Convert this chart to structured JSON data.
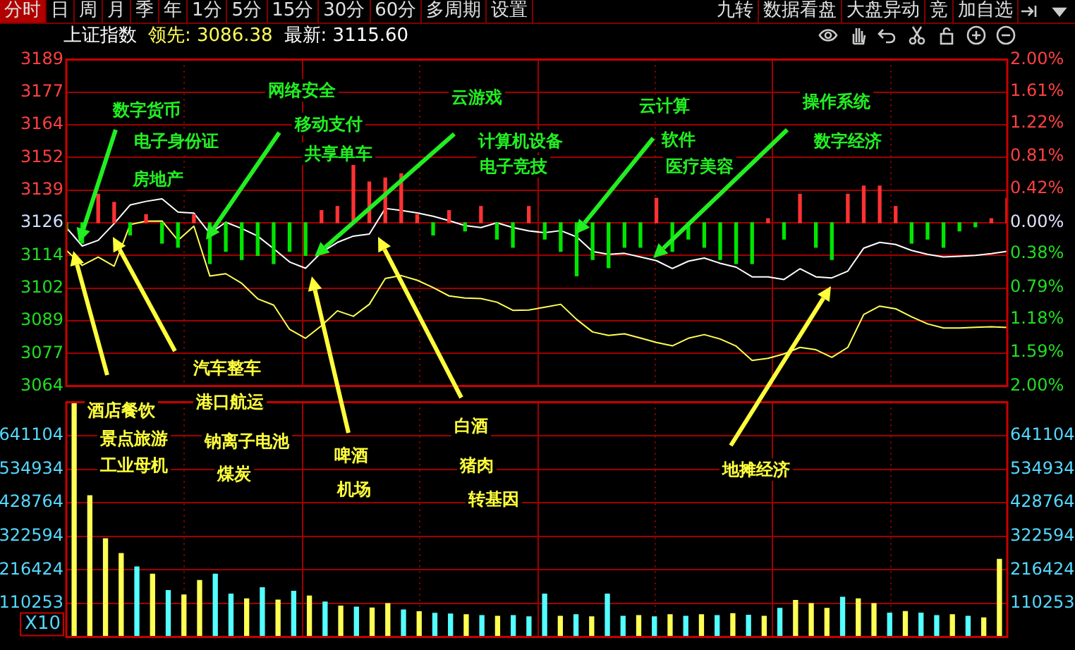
{
  "chart_data": [
    {
      "type": "other",
      "annotations": [
        "分时",
        "日",
        "周",
        "月",
        "季",
        "年",
        "1分",
        "5分",
        "15分",
        "30分",
        "60分",
        "多周期",
        "设置",
        "九转",
        "数据看盘",
        "大盘异动",
        "竞",
        "加自选"
      ]
    },
    {
      "type": "line",
      "title": "上证指数",
      "legend": "top left",
      "grid": true,
      "categories": [
        null,
        null,
        null,
        null,
        null,
        null,
        null,
        null,
        null,
        null,
        null,
        null,
        null,
        null,
        null,
        null,
        null,
        null,
        null,
        null,
        null,
        null,
        null,
        null,
        null,
        null,
        null,
        null,
        null,
        null,
        null,
        null,
        null,
        null,
        null,
        null,
        null,
        null,
        null,
        null,
        null,
        null,
        null,
        null,
        null,
        null,
        null,
        null,
        null,
        null,
        null,
        null,
        null,
        null,
        null,
        null,
        null,
        null,
        null,
        null
      ],
      "series": [
        {
          "name": "领先: 3086.38",
          "color": "#ffff54",
          "values": [
            3116.0,
            3110.2,
            3113.4,
            3109.9,
            3125.8,
            3127.1,
            3127.2,
            3119.8,
            3125.2,
            3106.1,
            3107.0,
            3103.3,
            3097.4,
            3095.0,
            3085.7,
            3082.3,
            3087.1,
            3092.8,
            3090.7,
            3095.3,
            3105.2,
            3106.3,
            3104.5,
            3101.7,
            3098.5,
            3097.7,
            3097.5,
            3096.1,
            3093.0,
            3093.1,
            3094.2,
            3095.3,
            3089.5,
            3084.7,
            3083.4,
            3084.0,
            3082.4,
            3080.7,
            3079.4,
            3082.3,
            3083.7,
            3082.0,
            3079.3,
            3073.8,
            3074.6,
            3076.3,
            3078.8,
            3077.9,
            3075.0,
            3078.8,
            3091.4,
            3094.6,
            3093.6,
            3090.5,
            3087.8,
            3086.2,
            3086.2,
            3086.5,
            3086.7,
            3086.4
          ]
        },
        {
          "name": "最新: 3115.60",
          "color": "#ffffff",
          "values": [
            3124.7,
            3117.6,
            3119.8,
            3126.2,
            3133.3,
            3134.7,
            3135.7,
            3130.6,
            3130.2,
            3122.4,
            3126.7,
            3124.3,
            3121.4,
            3116.6,
            3111.5,
            3109.1,
            3115.2,
            3119.0,
            3121.4,
            3122.2,
            3132.0,
            3131.2,
            3130.3,
            3129.0,
            3127.3,
            3125.4,
            3124.7,
            3126.5,
            3124.7,
            3123.4,
            3122.7,
            3123.5,
            3121.1,
            3115.5,
            3114.4,
            3114.8,
            3113.4,
            3112.0,
            3109.0,
            3111.8,
            3113.0,
            3111.0,
            3109.5,
            3105.8,
            3105.8,
            3104.8,
            3108.9,
            3105.8,
            3105.4,
            3108.0,
            3116.8,
            3119.0,
            3118.2,
            3115.9,
            3114.4,
            3113.4,
            3113.7,
            3114.0,
            3114.7,
            3115.6
          ]
        },
        {
          "type": "bar",
          "axis": "y2",
          "values": [
            -0.1,
            -0.25,
            0.35,
            0.25,
            -0.15,
            0.1,
            -0.25,
            -0.3,
            0.1,
            -0.5,
            -0.35,
            -0.45,
            -0.4,
            -0.5,
            -0.35,
            -0.4,
            0.15,
            0.2,
            0.75,
            0.5,
            0.55,
            0.6,
            0.1,
            -0.15,
            0.15,
            -0.1,
            0.2,
            -0.2,
            -0.3,
            0.2,
            -0.2,
            -0.35,
            -0.65,
            -0.45,
            -0.55,
            -0.3,
            -0.3,
            0.3,
            -0.35,
            -0.2,
            -0.3,
            -0.45,
            -0.5,
            -0.5,
            0.05,
            -0.2,
            0.35,
            -0.3,
            -0.45,
            0.35,
            0.45,
            0.45,
            0.2,
            -0.25,
            -0.2,
            -0.3,
            -0.1,
            -0.05,
            0.05,
            0.3
          ],
          "colors": [
            "#00e600",
            "#00e600",
            "#ff3232",
            "#ff3232",
            "#00e600",
            "#ff3232",
            "#00e600",
            "#00e600",
            "#ff3232",
            "#00e600",
            "#00e600",
            "#00e600",
            "#00e600",
            "#00e600",
            "#00e600",
            "#00e600",
            "#ff3232",
            "#ff3232",
            "#ff3232",
            "#ff3232",
            "#ff3232",
            "#ff3232",
            "#ff3232",
            "#00e600",
            "#ff3232",
            "#00e600",
            "#ff3232",
            "#00e600",
            "#00e600",
            "#ff3232",
            "#00e600",
            "#00e600",
            "#00e600",
            "#00e600",
            "#00e600",
            "#00e600",
            "#00e600",
            "#ff3232",
            "#00e600",
            "#00e600",
            "#00e600",
            "#00e600",
            "#00e600",
            "#00e600",
            "#ff3232",
            "#00e600",
            "#ff3232",
            "#00e600",
            "#00e600",
            "#ff3232",
            "#ff3232",
            "#ff3232",
            "#ff3232",
            "#00e600",
            "#00e600",
            "#00e600",
            "#00e600",
            "#00e600",
            "#ff3232",
            "#ff3232"
          ]
        }
      ],
      "ylim": [
        3064,
        3189
      ],
      "yticks": [
        3189,
        {
          "value": 3176.5,
          "label": "3177"
        },
        3164,
        {
          "value": 3151.5,
          "label": "3152"
        },
        3139,
        {
          "value": 3126.5,
          "label": "3126"
        },
        3114,
        {
          "value": 3101.5,
          "label": "3102"
        },
        3089,
        {
          "value": 3076.5,
          "label": "3077"
        },
        3064
      ],
      "y2lim": [
        -2,
        2
      ],
      "y2ticks": [
        {
          "value": 2,
          "label": "2.00%"
        },
        {
          "value": 1.61,
          "label": "1.61%"
        },
        {
          "value": 1.22,
          "label": "1.22%"
        },
        {
          "value": 0.81,
          "label": "0.81%"
        },
        {
          "value": 0.42,
          "label": "0.42%"
        },
        {
          "value": 0,
          "label": "0.00%"
        },
        {
          "value": -0.38,
          "label": "0.38%"
        },
        {
          "value": -0.79,
          "label": "0.79%"
        },
        {
          "value": -1.18,
          "label": "1.18%"
        },
        {
          "value": -1.59,
          "label": "1.59%"
        },
        {
          "value": -2,
          "label": "2.00%"
        }
      ],
      "annotations": [
        "数字货币",
        "电子身份证",
        "房地产",
        "网络安全",
        "移动支付",
        "共享单车",
        "云游戏",
        "计算机设备",
        "电子竞技",
        "云计算",
        "软件",
        "医疗美容",
        "操作系统",
        "数字经济",
        "酒店餐饮",
        "景点旅游",
        "工业母机",
        "汽车整车",
        "港口航运",
        "钠离子电池",
        "煤炭",
        "啤酒",
        "机场",
        "白酒",
        "猪肉",
        "转基因",
        "地摊经济"
      ]
    },
    {
      "type": "bar",
      "grid": true,
      "ylabel": "X10",
      "categories": [
        null,
        null,
        null,
        null,
        null,
        null,
        null,
        null,
        null,
        null,
        null,
        null,
        null,
        null,
        null,
        null,
        null,
        null,
        null,
        null,
        null,
        null,
        null,
        null,
        null,
        null,
        null,
        null,
        null,
        null,
        null,
        null,
        null,
        null,
        null,
        null,
        null,
        null,
        null,
        null,
        null,
        null,
        null,
        null,
        null,
        null,
        null,
        null,
        null,
        null,
        null,
        null,
        null,
        null,
        null,
        null,
        null,
        null,
        null,
        null
      ],
      "values": [
        746000,
        451000,
        315000,
        268000,
        226000,
        203000,
        151000,
        137000,
        183000,
        203000,
        140000,
        125000,
        160000,
        121000,
        149000,
        134000,
        115000,
        102000,
        99000,
        96000,
        110000,
        90000,
        84000,
        79000,
        77000,
        75000,
        72000,
        70000,
        72000,
        68000,
        140000,
        70000,
        75000,
        68000,
        140000,
        70000,
        72000,
        68000,
        75000,
        70000,
        75000,
        72000,
        78000,
        73000,
        70000,
        95000,
        120000,
        110000,
        95000,
        130000,
        125000,
        110000,
        80000,
        85000,
        80000,
        72000,
        75000,
        70000,
        65000,
        250000
      ],
      "colors": [
        "#ffff54",
        "#ffff54",
        "#ffff54",
        "#ffff54",
        "#54ffff",
        "#ffff54",
        "#54ffff",
        "#ffff54",
        "#ffff54",
        "#54ffff",
        "#54ffff",
        "#ffff54",
        "#54ffff",
        "#ffff54",
        "#54ffff",
        "#ffff54",
        "#54ffff",
        "#ffff54",
        "#54ffff",
        "#ffff54",
        "#ffff54",
        "#54ffff",
        "#ffff54",
        "#54ffff",
        "#54ffff",
        "#ffff54",
        "#54ffff",
        "#ffff54",
        "#54ffff",
        "#54ffff",
        "#54ffff",
        "#ffff54",
        "#54ffff",
        "#ffff54",
        "#54ffff",
        "#54ffff",
        "#ffff54",
        "#54ffff",
        "#ffff54",
        "#54ffff",
        "#ffff54",
        "#54ffff",
        "#ffff54",
        "#54ffff",
        "#ffff54",
        "#54ffff",
        "#ffff54",
        "#ffff54",
        "#ffff54",
        "#54ffff",
        "#ffff54",
        "#ffff54",
        "#54ffff",
        "#ffff54",
        "#54ffff",
        "#54ffff",
        "#ffff54",
        "#54ffff",
        "#ffff54",
        "#ffff54"
      ],
      "ylim": [
        4083,
        747274
      ],
      "yticks": [
        110253,
        216424,
        322594,
        428764,
        534934,
        641104
      ],
      "y2lim": [
        4083,
        747274
      ],
      "y2ticks": [
        110253,
        216424,
        322594,
        428764,
        534934,
        641104
      ]
    }
  ]
}
